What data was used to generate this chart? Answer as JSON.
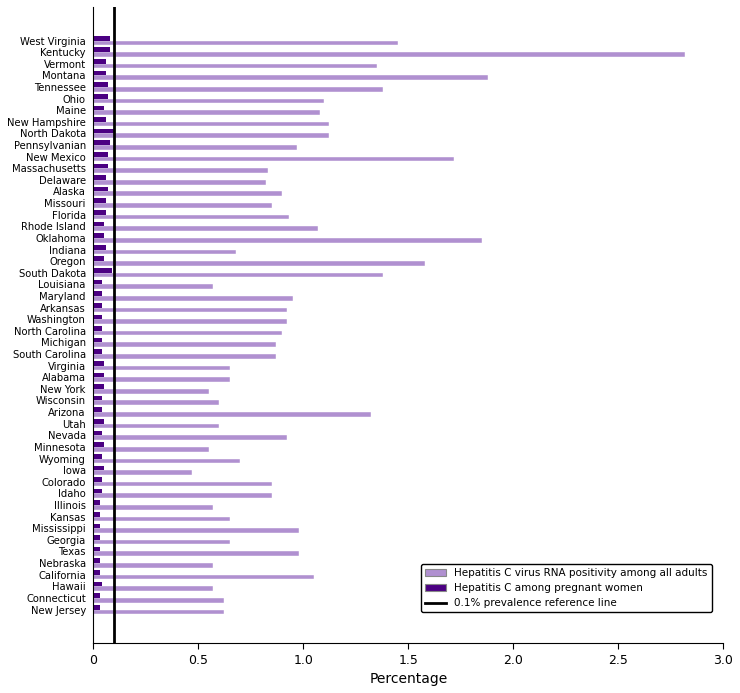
{
  "states": [
    "West Virginia",
    "Kentucky",
    "Vermont",
    "Montana",
    "Tennessee",
    "Ohio",
    "Maine",
    "New Hampshire",
    "North Dakota",
    "Pennsylvanian",
    "New Mexico",
    "Massachusetts",
    "Delaware",
    "Alaska",
    "Missouri",
    "Florida",
    "Rhode Island",
    "Oklahoma",
    "Indiana",
    "Oregon",
    "South Dakota",
    "Louisiana",
    "Maryland",
    "Arkansas",
    "Washington",
    "North Carolina",
    "Michigan",
    "South Carolina",
    "Virginia",
    "Alabama",
    "New York",
    "Wisconsin",
    "Arizona",
    "Utah",
    "Nevada",
    "Minnesota",
    "Wyoming",
    "Iowa",
    "Colorado",
    "Idaho",
    "Illinois",
    "Kansas",
    "Mississippi",
    "Georgia",
    "Texas",
    "Nebraska",
    "California",
    "Hawaii",
    "Connecticut",
    "New Jersey"
  ],
  "all_adults": [
    1.45,
    2.82,
    1.35,
    1.88,
    1.38,
    1.1,
    1.08,
    1.12,
    1.12,
    0.97,
    1.72,
    0.83,
    0.82,
    0.9,
    0.85,
    0.93,
    1.07,
    1.85,
    0.68,
    1.58,
    1.38,
    0.57,
    0.95,
    0.92,
    0.92,
    0.9,
    0.87,
    0.87,
    0.65,
    0.65,
    0.55,
    0.6,
    1.32,
    0.6,
    0.92,
    0.55,
    0.7,
    0.47,
    0.85,
    0.85,
    0.57,
    0.65,
    0.98,
    0.65,
    0.98,
    0.57,
    1.05,
    0.57,
    0.62,
    0.62
  ],
  "pregnant_women": [
    0.08,
    0.08,
    0.06,
    0.06,
    0.07,
    0.07,
    0.05,
    0.06,
    0.1,
    0.08,
    0.07,
    0.07,
    0.06,
    0.07,
    0.06,
    0.06,
    0.05,
    0.05,
    0.06,
    0.05,
    0.09,
    0.04,
    0.04,
    0.04,
    0.04,
    0.04,
    0.04,
    0.04,
    0.05,
    0.05,
    0.05,
    0.04,
    0.04,
    0.05,
    0.04,
    0.05,
    0.04,
    0.05,
    0.04,
    0.04,
    0.03,
    0.03,
    0.03,
    0.03,
    0.03,
    0.03,
    0.03,
    0.04,
    0.03,
    0.03
  ],
  "color_adults": "#b090d0",
  "color_pregnant": "#4b0082",
  "reference_line": 0.1,
  "xlabel": "Percentage",
  "xlim": [
    0,
    3.0
  ],
  "xticks": [
    0,
    0.5,
    1.0,
    1.5,
    2.0,
    2.5,
    3.0
  ],
  "legend_label_adults": "Hepatitis C virus RNA positivity among all adults",
  "legend_label_pregnant": "Hepatitis C among pregnant women",
  "legend_label_ref": "0.1% prevalence reference line",
  "bar_height": 0.4
}
